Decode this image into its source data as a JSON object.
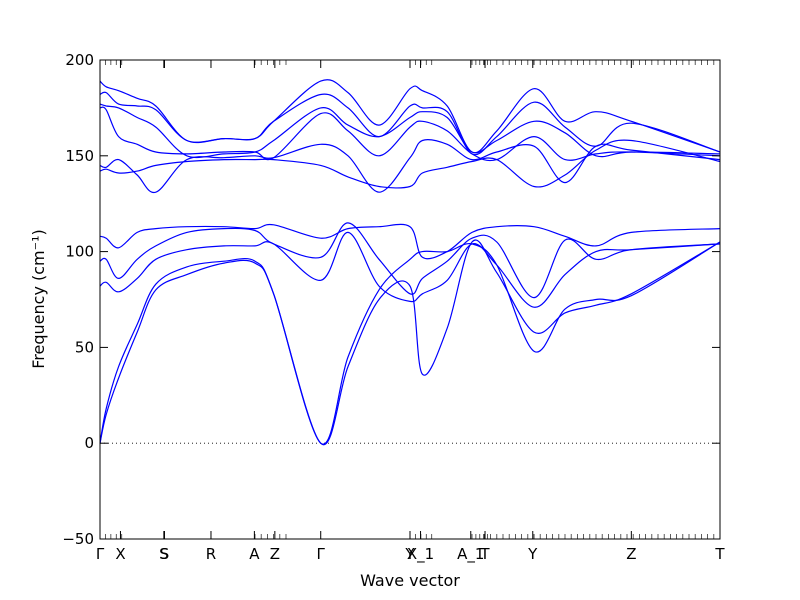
{
  "chart_data": {
    "type": "line",
    "xlabel": "Wave vector",
    "ylabel": "Frequency (cm⁻¹)",
    "ylim": [
      -50,
      200
    ],
    "yticks": [
      -50,
      0,
      50,
      100,
      150,
      200
    ],
    "zero_line": 0,
    "high_symmetry_points": [
      {
        "label": "Γ",
        "x": 0.0
      },
      {
        "label": "X",
        "x": 0.033
      },
      {
        "label": "S",
        "x": 0.103
      },
      {
        "label": "S",
        "x": 0.104
      },
      {
        "label": "R",
        "x": 0.179
      },
      {
        "label": "A",
        "x": 0.249
      },
      {
        "label": "Z",
        "x": 0.282
      },
      {
        "label": "Γ",
        "x": 0.356
      },
      {
        "label": "Y",
        "x": 0.5
      },
      {
        "label": "X_1",
        "x": 0.517
      },
      {
        "label": "A_1",
        "x": 0.598
      },
      {
        "label": "T",
        "x": 0.621
      },
      {
        "label": "Y",
        "x": 0.698
      },
      {
        "label": "Z",
        "x": 0.857
      },
      {
        "label": "T",
        "x": 1.0
      }
    ],
    "segment_ticks": [
      [
        0,
        0.035
      ],
      [
        0.25,
        0.3
      ],
      [
        0.5,
        0.535
      ],
      [
        0.6,
        0.625
      ],
      [
        0.62,
        0.7
      ],
      [
        0.7,
        1.0
      ]
    ],
    "series": [
      {
        "values": [
          [
            0,
            0
          ],
          [
            0.01,
            18
          ],
          [
            0.03,
            40
          ],
          [
            0.06,
            62
          ],
          [
            0.09,
            83
          ],
          [
            0.14,
            92
          ],
          [
            0.2,
            95
          ],
          [
            0.25,
            95
          ],
          [
            0.28,
            78
          ],
          [
            0.356,
            0
          ],
          [
            0.4,
            45
          ],
          [
            0.45,
            80
          ],
          [
            0.5,
            96
          ],
          [
            0.52,
            100
          ],
          [
            0.56,
            100
          ],
          [
            0.6,
            104
          ],
          [
            0.64,
            93
          ],
          [
            0.7,
            48
          ],
          [
            0.75,
            70
          ],
          [
            0.8,
            75
          ],
          [
            0.857,
            77
          ],
          [
            1.0,
            105
          ]
        ]
      },
      {
        "values": [
          [
            0,
            0
          ],
          [
            0.01,
            15
          ],
          [
            0.03,
            34
          ],
          [
            0.06,
            58
          ],
          [
            0.09,
            80
          ],
          [
            0.14,
            88
          ],
          [
            0.2,
            94
          ],
          [
            0.25,
            94
          ],
          [
            0.28,
            78
          ],
          [
            0.356,
            0
          ],
          [
            0.4,
            40
          ],
          [
            0.45,
            75
          ],
          [
            0.5,
            82
          ],
          [
            0.52,
            36
          ],
          [
            0.56,
            60
          ],
          [
            0.6,
            105
          ],
          [
            0.64,
            89
          ],
          [
            0.7,
            58
          ],
          [
            0.75,
            68
          ],
          [
            0.8,
            72
          ],
          [
            0.857,
            78
          ],
          [
            1.0,
            105
          ]
        ]
      },
      {
        "values": [
          [
            0,
            82
          ],
          [
            0.01,
            84
          ],
          [
            0.03,
            79
          ],
          [
            0.06,
            86
          ],
          [
            0.09,
            96
          ],
          [
            0.14,
            101
          ],
          [
            0.2,
            103
          ],
          [
            0.25,
            103
          ],
          [
            0.28,
            104
          ],
          [
            0.356,
            85
          ],
          [
            0.4,
            110
          ],
          [
            0.45,
            82
          ],
          [
            0.5,
            74
          ],
          [
            0.52,
            78
          ],
          [
            0.56,
            85
          ],
          [
            0.6,
            104
          ],
          [
            0.64,
            93
          ],
          [
            0.7,
            71
          ],
          [
            0.75,
            88
          ],
          [
            0.8,
            100
          ],
          [
            0.857,
            101
          ],
          [
            1.0,
            104
          ]
        ]
      },
      {
        "values": [
          [
            0,
            95
          ],
          [
            0.01,
            96
          ],
          [
            0.03,
            86
          ],
          [
            0.06,
            96
          ],
          [
            0.09,
            103
          ],
          [
            0.14,
            110
          ],
          [
            0.2,
            112
          ],
          [
            0.25,
            111
          ],
          [
            0.28,
            104
          ],
          [
            0.356,
            97
          ],
          [
            0.4,
            115
          ],
          [
            0.45,
            96
          ],
          [
            0.5,
            78
          ],
          [
            0.52,
            86
          ],
          [
            0.56,
            95
          ],
          [
            0.6,
            107
          ],
          [
            0.64,
            105
          ],
          [
            0.7,
            76
          ],
          [
            0.75,
            106
          ],
          [
            0.8,
            96
          ],
          [
            0.857,
            101
          ],
          [
            1.0,
            104
          ]
        ]
      },
      {
        "values": [
          [
            0,
            108
          ],
          [
            0.01,
            107
          ],
          [
            0.03,
            102
          ],
          [
            0.06,
            110
          ],
          [
            0.09,
            112
          ],
          [
            0.14,
            113
          ],
          [
            0.2,
            113
          ],
          [
            0.25,
            112
          ],
          [
            0.28,
            114
          ],
          [
            0.356,
            107
          ],
          [
            0.4,
            112
          ],
          [
            0.45,
            113
          ],
          [
            0.5,
            113
          ],
          [
            0.52,
            97
          ],
          [
            0.56,
            100
          ],
          [
            0.6,
            110
          ],
          [
            0.64,
            113
          ],
          [
            0.7,
            113
          ],
          [
            0.75,
            108
          ],
          [
            0.8,
            103
          ],
          [
            0.857,
            110
          ],
          [
            1.0,
            112
          ]
        ]
      },
      {
        "values": [
          [
            0,
            142
          ],
          [
            0.01,
            143
          ],
          [
            0.03,
            141
          ],
          [
            0.06,
            142
          ],
          [
            0.09,
            145
          ],
          [
            0.14,
            147
          ],
          [
            0.2,
            148
          ],
          [
            0.25,
            148
          ],
          [
            0.28,
            148
          ],
          [
            0.356,
            145
          ],
          [
            0.4,
            139
          ],
          [
            0.45,
            134
          ],
          [
            0.5,
            134
          ],
          [
            0.52,
            141
          ],
          [
            0.56,
            144
          ],
          [
            0.6,
            147
          ],
          [
            0.64,
            148
          ],
          [
            0.7,
            134
          ],
          [
            0.75,
            140
          ],
          [
            0.8,
            153
          ],
          [
            0.857,
            158
          ],
          [
            1.0,
            147
          ]
        ]
      },
      {
        "values": [
          [
            0,
            145
          ],
          [
            0.01,
            144
          ],
          [
            0.03,
            148
          ],
          [
            0.06,
            140
          ],
          [
            0.09,
            131
          ],
          [
            0.14,
            148
          ],
          [
            0.2,
            149
          ],
          [
            0.25,
            150
          ],
          [
            0.28,
            149
          ],
          [
            0.356,
            156
          ],
          [
            0.4,
            150
          ],
          [
            0.45,
            131
          ],
          [
            0.5,
            149
          ],
          [
            0.52,
            158
          ],
          [
            0.56,
            156
          ],
          [
            0.6,
            148
          ],
          [
            0.64,
            152
          ],
          [
            0.7,
            155
          ],
          [
            0.75,
            136
          ],
          [
            0.8,
            155
          ],
          [
            0.857,
            153
          ],
          [
            1.0,
            148
          ]
        ]
      },
      {
        "values": [
          [
            0,
            175
          ],
          [
            0.01,
            174
          ],
          [
            0.03,
            160
          ],
          [
            0.06,
            156
          ],
          [
            0.09,
            152
          ],
          [
            0.14,
            151
          ],
          [
            0.2,
            152
          ],
          [
            0.25,
            152
          ],
          [
            0.28,
            149
          ],
          [
            0.356,
            172
          ],
          [
            0.4,
            163
          ],
          [
            0.45,
            150
          ],
          [
            0.5,
            165
          ],
          [
            0.52,
            168
          ],
          [
            0.56,
            163
          ],
          [
            0.6,
            151
          ],
          [
            0.64,
            148
          ],
          [
            0.7,
            160
          ],
          [
            0.75,
            148
          ],
          [
            0.8,
            151
          ],
          [
            0.857,
            152
          ],
          [
            1.0,
            150
          ]
        ]
      },
      {
        "values": [
          [
            0,
            177
          ],
          [
            0.01,
            176
          ],
          [
            0.03,
            175
          ],
          [
            0.06,
            170
          ],
          [
            0.09,
            165
          ],
          [
            0.14,
            150
          ],
          [
            0.2,
            151
          ],
          [
            0.25,
            152
          ],
          [
            0.28,
            158
          ],
          [
            0.356,
            175
          ],
          [
            0.4,
            166
          ],
          [
            0.45,
            160
          ],
          [
            0.5,
            170
          ],
          [
            0.52,
            173
          ],
          [
            0.56,
            170
          ],
          [
            0.6,
            152
          ],
          [
            0.64,
            158
          ],
          [
            0.7,
            168
          ],
          [
            0.75,
            162
          ],
          [
            0.8,
            150
          ],
          [
            0.857,
            152
          ],
          [
            1.0,
            151
          ]
        ]
      },
      {
        "values": [
          [
            0,
            182
          ],
          [
            0.01,
            183
          ],
          [
            0.03,
            177
          ],
          [
            0.06,
            176
          ],
          [
            0.09,
            174
          ],
          [
            0.14,
            158
          ],
          [
            0.2,
            159
          ],
          [
            0.25,
            159
          ],
          [
            0.28,
            168
          ],
          [
            0.356,
            182
          ],
          [
            0.4,
            175
          ],
          [
            0.45,
            160
          ],
          [
            0.5,
            176
          ],
          [
            0.52,
            175
          ],
          [
            0.56,
            173
          ],
          [
            0.6,
            151
          ],
          [
            0.64,
            160
          ],
          [
            0.7,
            178
          ],
          [
            0.75,
            165
          ],
          [
            0.8,
            155
          ],
          [
            0.857,
            167
          ],
          [
            1.0,
            152
          ]
        ]
      },
      {
        "values": [
          [
            0,
            189
          ],
          [
            0.01,
            186
          ],
          [
            0.03,
            184
          ],
          [
            0.06,
            180
          ],
          [
            0.09,
            176
          ],
          [
            0.14,
            158
          ],
          [
            0.2,
            159
          ],
          [
            0.25,
            159
          ],
          [
            0.28,
            168
          ],
          [
            0.356,
            189
          ],
          [
            0.4,
            183
          ],
          [
            0.45,
            166
          ],
          [
            0.5,
            185
          ],
          [
            0.52,
            184
          ],
          [
            0.56,
            176
          ],
          [
            0.6,
            152
          ],
          [
            0.64,
            163
          ],
          [
            0.7,
            185
          ],
          [
            0.75,
            168
          ],
          [
            0.8,
            173
          ],
          [
            0.857,
            168
          ],
          [
            1.0,
            152
          ]
        ]
      }
    ]
  }
}
